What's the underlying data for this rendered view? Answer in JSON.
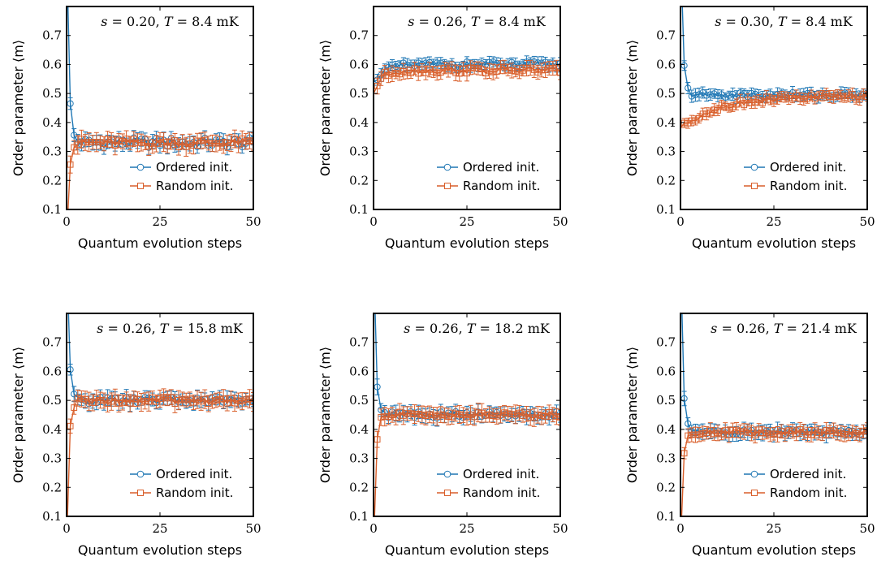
{
  "chart_data": [
    {
      "type": "line",
      "title": "s = 0.20, T = 8.4 mK",
      "params": {
        "s": "0.20",
        "T": "8.4"
      },
      "xlabel": "Quantum evolution steps",
      "ylabel": "Order parameter ⟨m⟩",
      "xlim": [
        0,
        50
      ],
      "ylim": [
        0.1,
        0.8
      ],
      "x_ticks": [
        "0",
        "25",
        "50"
      ],
      "y_ticks": [
        "0.1",
        "0.2",
        "0.3",
        "0.4",
        "0.5",
        "0.6",
        "0.7"
      ],
      "legend": "lower-right",
      "series": [
        {
          "name": "Ordered init.",
          "marker": "circle",
          "color": "#1f77b4",
          "start": 1.0,
          "level": 0.33,
          "amp": 0.018,
          "err": 0.025
        },
        {
          "name": "Random init.",
          "marker": "square",
          "color": "#d95f2b",
          "start": 0.0,
          "level": 0.33,
          "amp": 0.015,
          "err": 0.03
        }
      ]
    },
    {
      "type": "line",
      "title": "s = 0.26, T = 8.4 mK",
      "params": {
        "s": "0.26",
        "T": "8.4"
      },
      "xlabel": "Quantum evolution steps",
      "ylabel": "Order parameter ⟨m⟩",
      "xlim": [
        0,
        50
      ],
      "ylim": [
        0.1,
        0.8
      ],
      "x_ticks": [
        "0",
        "25",
        "50"
      ],
      "y_ticks": [
        "0.1",
        "0.2",
        "0.3",
        "0.4",
        "0.5",
        "0.6",
        "0.7"
      ],
      "legend": "lower-right",
      "series": [
        {
          "name": "Ordered init.",
          "marker": "circle",
          "color": "#1f77b4",
          "start": 0.54,
          "level": 0.6,
          "amp": 0.01,
          "err": 0.02,
          "tau": 3
        },
        {
          "name": "Random init.",
          "marker": "square",
          "color": "#d95f2b",
          "start": 0.5,
          "level": 0.58,
          "amp": 0.012,
          "err": 0.025,
          "tau": 2
        }
      ]
    },
    {
      "type": "line",
      "title": "s = 0.30, T = 8.4 mK",
      "params": {
        "s": "0.30",
        "T": "8.4"
      },
      "xlabel": "Quantum evolution steps",
      "ylabel": "Order parameter ⟨m⟩",
      "xlim": [
        0,
        50
      ],
      "ylim": [
        0.1,
        0.8
      ],
      "x_ticks": [
        "0",
        "25",
        "50"
      ],
      "y_ticks": [
        "0.1",
        "0.2",
        "0.3",
        "0.4",
        "0.5",
        "0.6",
        "0.7"
      ],
      "legend": "lower-right",
      "series": [
        {
          "name": "Ordered init.",
          "marker": "circle",
          "color": "#1f77b4",
          "start": 1.0,
          "level": 0.495,
          "amp": 0.01,
          "err": 0.02
        },
        {
          "name": "Random init.",
          "marker": "square",
          "color": "#d95f2b",
          "start": 0.38,
          "level": 0.49,
          "amp": 0.01,
          "err": 0.02,
          "tau": 10
        }
      ]
    },
    {
      "type": "line",
      "title": "s = 0.26, T = 15.8 mK",
      "params": {
        "s": "0.26",
        "T": "15.8"
      },
      "xlabel": "Quantum evolution steps",
      "ylabel": "Order parameter ⟨m⟩",
      "xlim": [
        0,
        50
      ],
      "ylim": [
        0.1,
        0.8
      ],
      "x_ticks": [
        "0",
        "25",
        "50"
      ],
      "y_ticks": [
        "0.1",
        "0.2",
        "0.3",
        "0.4",
        "0.5",
        "0.6",
        "0.7"
      ],
      "legend": "lower-right",
      "series": [
        {
          "name": "Ordered init.",
          "marker": "circle",
          "color": "#1f77b4",
          "start": 1.0,
          "level": 0.5,
          "amp": 0.012,
          "err": 0.025
        },
        {
          "name": "Random init.",
          "marker": "square",
          "color": "#d95f2b",
          "start": 0.0,
          "level": 0.5,
          "amp": 0.012,
          "err": 0.03
        }
      ]
    },
    {
      "type": "line",
      "title": "s = 0.26, T = 18.2 mK",
      "params": {
        "s": "0.26",
        "T": "18.2"
      },
      "xlabel": "Quantum evolution steps",
      "ylabel": "Order parameter ⟨m⟩",
      "xlim": [
        0,
        50
      ],
      "ylim": [
        0.1,
        0.8
      ],
      "x_ticks": [
        "0",
        "25",
        "50"
      ],
      "y_ticks": [
        "0.1",
        "0.2",
        "0.3",
        "0.4",
        "0.5",
        "0.6",
        "0.7"
      ],
      "legend": "lower-right",
      "series": [
        {
          "name": "Ordered init.",
          "marker": "circle",
          "color": "#1f77b4",
          "start": 1.0,
          "level": 0.45,
          "amp": 0.012,
          "err": 0.025
        },
        {
          "name": "Random init.",
          "marker": "square",
          "color": "#d95f2b",
          "start": 0.0,
          "level": 0.45,
          "amp": 0.01,
          "err": 0.03
        }
      ]
    },
    {
      "type": "line",
      "title": "s = 0.26, T = 21.4 mK",
      "params": {
        "s": "0.26",
        "T": "21.4"
      },
      "xlabel": "Quantum evolution steps",
      "ylabel": "Order parameter ⟨m⟩",
      "xlim": [
        0,
        50
      ],
      "ylim": [
        0.1,
        0.8
      ],
      "x_ticks": [
        "0",
        "25",
        "50"
      ],
      "y_ticks": [
        "0.1",
        "0.2",
        "0.3",
        "0.4",
        "0.5",
        "0.6",
        "0.7"
      ],
      "legend": "lower-right",
      "series": [
        {
          "name": "Ordered init.",
          "marker": "circle",
          "color": "#1f77b4",
          "start": 1.0,
          "level": 0.39,
          "amp": 0.01,
          "err": 0.025
        },
        {
          "name": "Random init.",
          "marker": "square",
          "color": "#d95f2b",
          "start": 0.0,
          "level": 0.39,
          "amp": 0.01,
          "err": 0.025
        }
      ]
    }
  ]
}
